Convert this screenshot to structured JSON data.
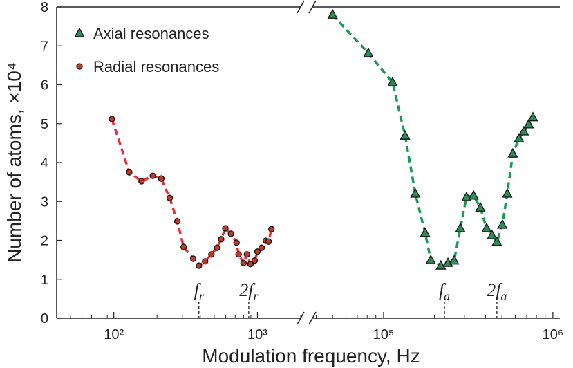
{
  "chart_data": {
    "type": "scatter",
    "xlabel": "Modulation frequency, Hz",
    "ylabel": "Number of atoms, ×10⁴",
    "ylim": [
      0,
      8
    ],
    "yticks": [
      0,
      1,
      2,
      3,
      4,
      5,
      6,
      7,
      8
    ],
    "xscale": "log",
    "legend": "upper left",
    "panels": [
      {
        "xlim": [
          40,
          2000
        ],
        "xticks": [
          {
            "value": 100,
            "label": "10²"
          },
          {
            "value": 1000,
            "label": "10³"
          }
        ],
        "xminor": [
          40,
          50,
          60,
          70,
          80,
          90,
          200,
          300,
          400,
          500,
          600,
          700,
          800,
          900,
          2000
        ],
        "annotations": [
          {
            "text": "f",
            "sub": "r",
            "x": 391
          },
          {
            "text": "2f",
            "sub": "r",
            "x": 870
          }
        ]
      },
      {
        "xlim": [
          38000,
          1100000
        ],
        "xticks": [
          {
            "value": 100000,
            "label": "10⁵"
          },
          {
            "value": 1000000,
            "label": "10⁶"
          }
        ],
        "xminor": [
          40000,
          50000,
          60000,
          70000,
          80000,
          90000,
          200000,
          300000,
          400000,
          500000,
          600000,
          700000,
          800000,
          900000
        ],
        "annotations": [
          {
            "text": "f",
            "sub": "a",
            "x": 229000
          },
          {
            "text": "2f",
            "sub": "a",
            "x": 467000
          }
        ]
      }
    ],
    "series": [
      {
        "name": "Axial resonances",
        "panel": 1,
        "marker": "triangle",
        "color": "#2e8b57",
        "line_color": "#1a9a50",
        "x": [
          50000,
          81300,
          113000,
          134000,
          154000,
          176000,
          190000,
          218000,
          240000,
          261000,
          284000,
          309000,
          340000,
          373000,
          406000,
          437000,
          467000,
          503000,
          538000,
          580000,
          631000,
          674000,
          720000,
          762000
        ],
        "values": [
          7.8,
          6.81,
          6.06,
          4.69,
          3.2,
          2.19,
          1.49,
          1.35,
          1.42,
          1.48,
          2.31,
          3.11,
          3.15,
          2.84,
          2.31,
          2.13,
          1.96,
          2.4,
          3.2,
          4.23,
          4.62,
          4.8,
          4.98,
          5.16
        ]
      },
      {
        "name": "Radial resonances",
        "panel": 0,
        "marker": "circle",
        "color": "#c0392b",
        "line_color": "#e8303a",
        "x": [
          97,
          128,
          156,
          187,
          214,
          245,
          277,
          306,
          357,
          391,
          432,
          478,
          523,
          559,
          598,
          654,
          715,
          739,
          800,
          846,
          894,
          957,
          1000,
          1069,
          1143,
          1196,
          1251
        ],
        "values": [
          5.12,
          3.75,
          3.52,
          3.66,
          3.59,
          3.09,
          2.49,
          1.83,
          1.53,
          1.35,
          1.46,
          1.64,
          1.81,
          2.03,
          2.31,
          2.17,
          1.94,
          1.64,
          1.42,
          1.64,
          1.39,
          1.48,
          1.71,
          1.81,
          1.99,
          1.97,
          2.29
        ]
      }
    ]
  }
}
